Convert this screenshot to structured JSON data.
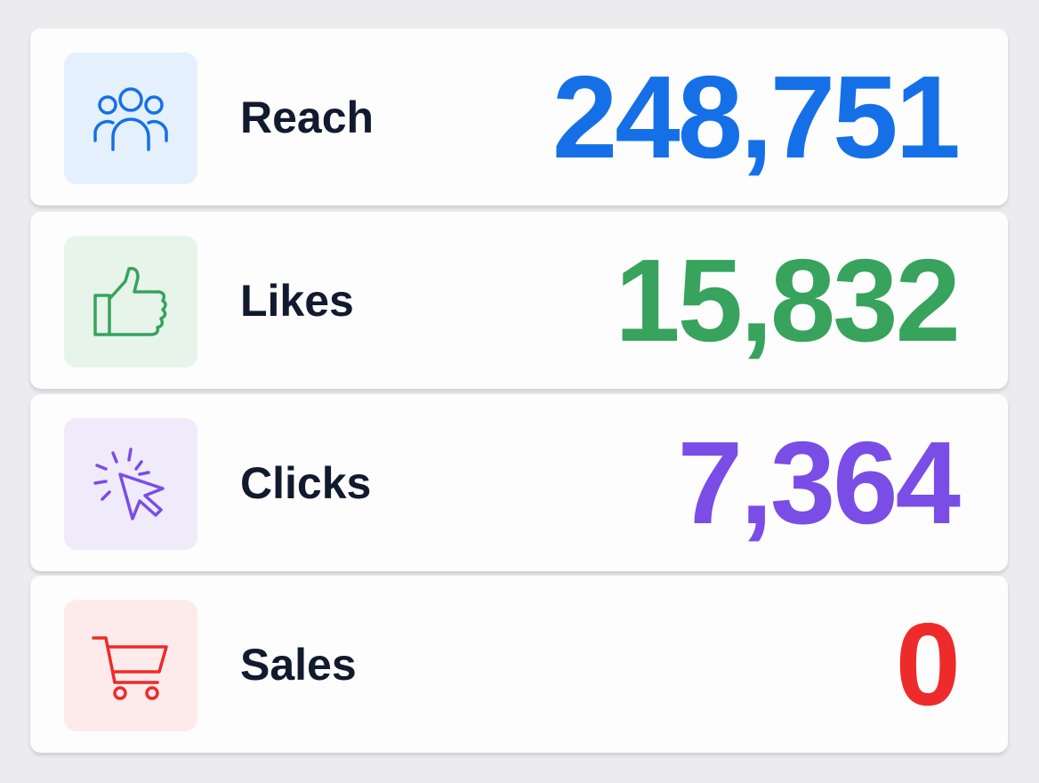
{
  "cards": [
    {
      "label": "Reach",
      "value": "248,751"
    },
    {
      "label": "Likes",
      "value": "15,832"
    },
    {
      "label": "Clicks",
      "value": "7,364"
    },
    {
      "label": "Sales",
      "value": "0"
    }
  ]
}
